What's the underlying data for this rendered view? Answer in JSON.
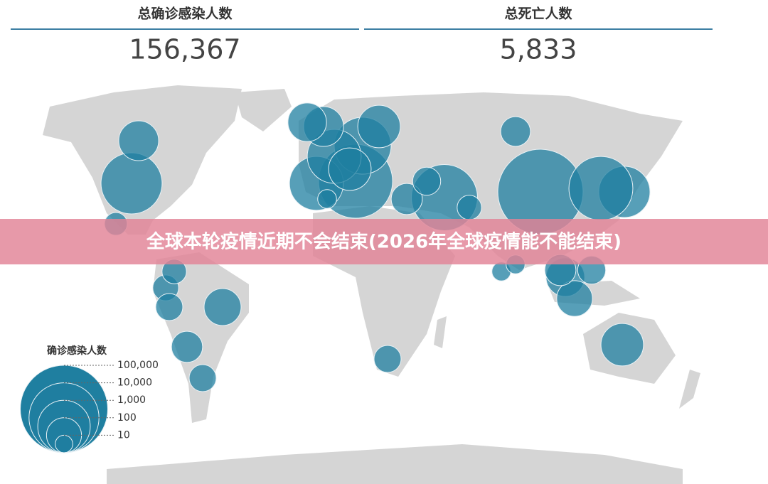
{
  "header": {
    "stats": [
      {
        "label": "总确诊感染人数",
        "value": "156,367"
      },
      {
        "label": "总死亡人数",
        "value": "5,833"
      }
    ]
  },
  "banner": "全球本轮疫情近期不会结束(2026年全球疫情能不能结束)",
  "chart_data": {
    "type": "bubble-map",
    "legend_title": "确诊感染人数",
    "color": "#1f7fa0",
    "size_ticks": [
      {
        "value": 100000,
        "label": "100,000"
      },
      {
        "value": 10000,
        "label": "10,000"
      },
      {
        "value": 1000,
        "label": "1,000"
      },
      100,
      10
    ],
    "values": [
      75000,
      850,
      4500,
      6000,
      17000,
      1200,
      1800,
      1200,
      190,
      160,
      270,
      270,
      50,
      3100,
      190,
      20,
      130,
      30,
      35,
      35,
      60,
      25,
      35,
      60,
      40,
      25,
      12,
      12,
      160,
      110,
      60,
      40,
      270,
      12
    ]
  }
}
